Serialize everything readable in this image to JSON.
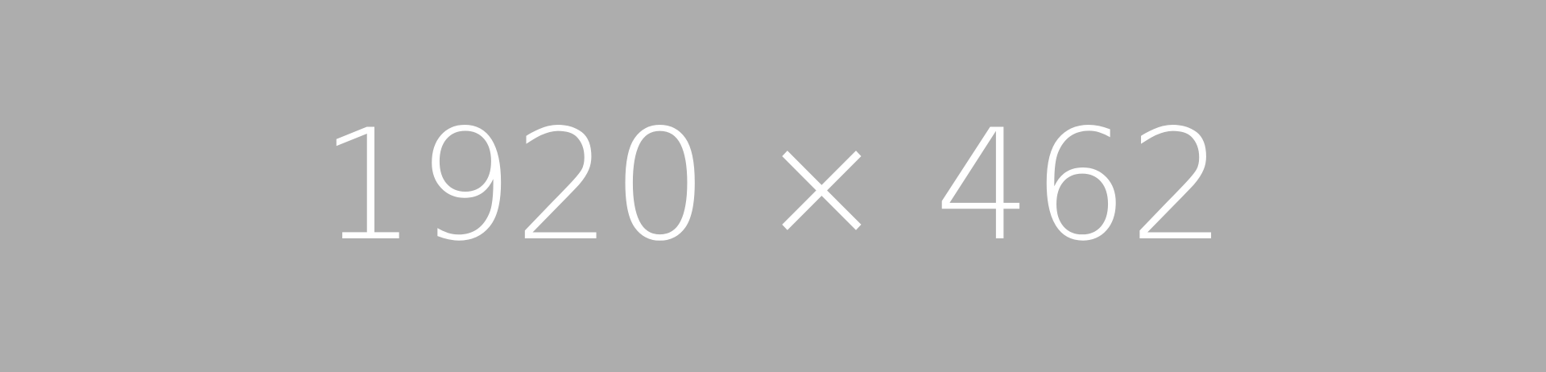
{
  "placeholder": {
    "label": "1920 × 462",
    "background_color": "#adadad",
    "text_color": "#ffffff"
  }
}
